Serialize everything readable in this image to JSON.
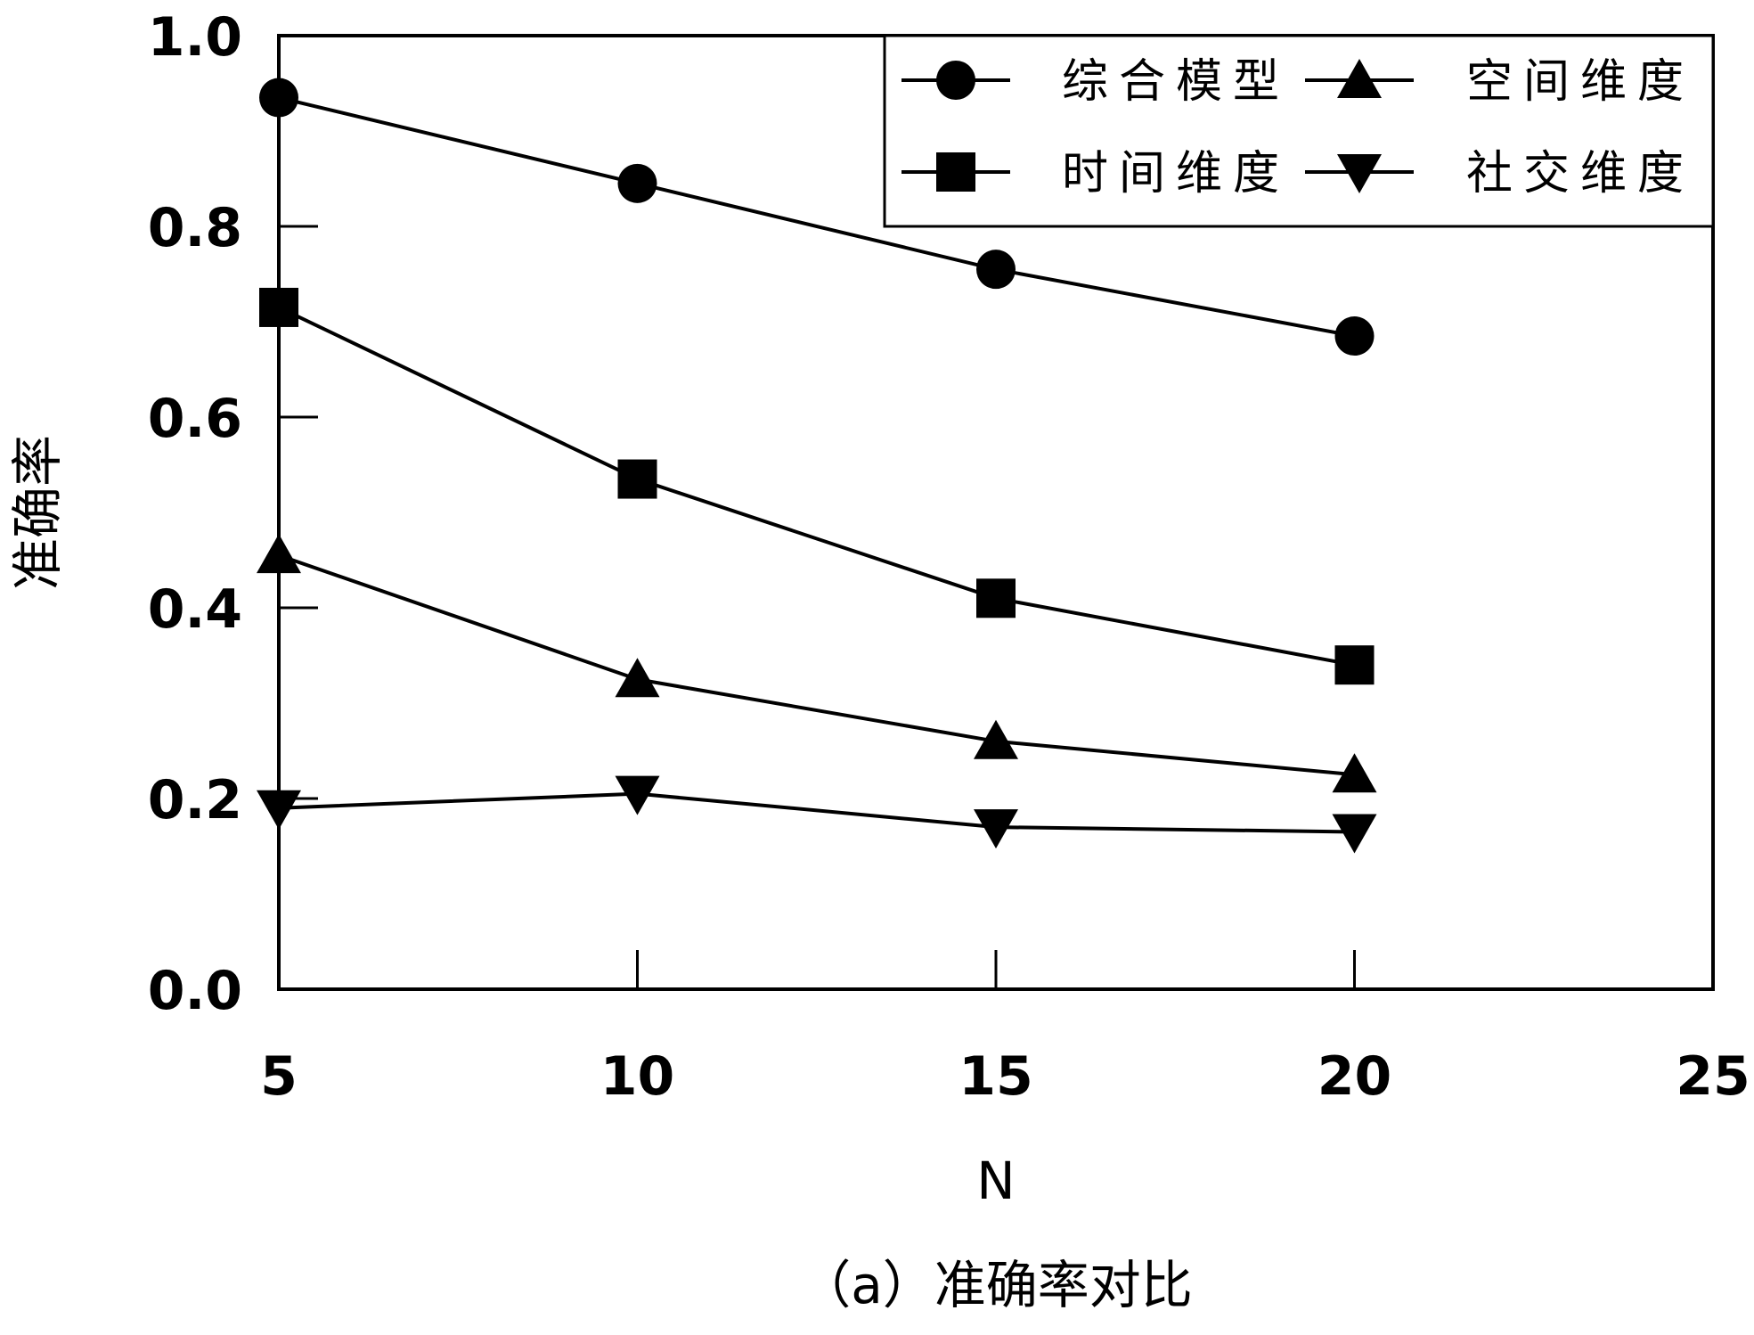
{
  "chart_data": {
    "type": "line",
    "title": "",
    "caption": "（a）准确率对比",
    "xlabel": "N",
    "ylabel": "准确率",
    "xlim": [
      5,
      25
    ],
    "ylim": [
      0.0,
      1.0
    ],
    "x_ticks": [
      "5",
      "10",
      "15",
      "20",
      "25"
    ],
    "y_ticks": [
      "0.0",
      "0.2",
      "0.4",
      "0.6",
      "0.8",
      "1.0"
    ],
    "x": [
      5,
      10,
      15,
      20
    ],
    "grid": false,
    "legend_position": "top-right",
    "series": [
      {
        "name": "综合模型",
        "marker": "circle",
        "color": "#000000",
        "values": [
          0.935,
          0.845,
          0.755,
          0.685
        ]
      },
      {
        "name": "时间维度",
        "marker": "square",
        "color": "#000000",
        "values": [
          0.715,
          0.535,
          0.41,
          0.34
        ]
      },
      {
        "name": "空间维度",
        "marker": "triangle-up",
        "color": "#000000",
        "values": [
          0.455,
          0.325,
          0.26,
          0.225
        ]
      },
      {
        "name": "社交维度",
        "marker": "triangle-down",
        "color": "#000000",
        "values": [
          0.19,
          0.205,
          0.17,
          0.165
        ]
      }
    ]
  }
}
